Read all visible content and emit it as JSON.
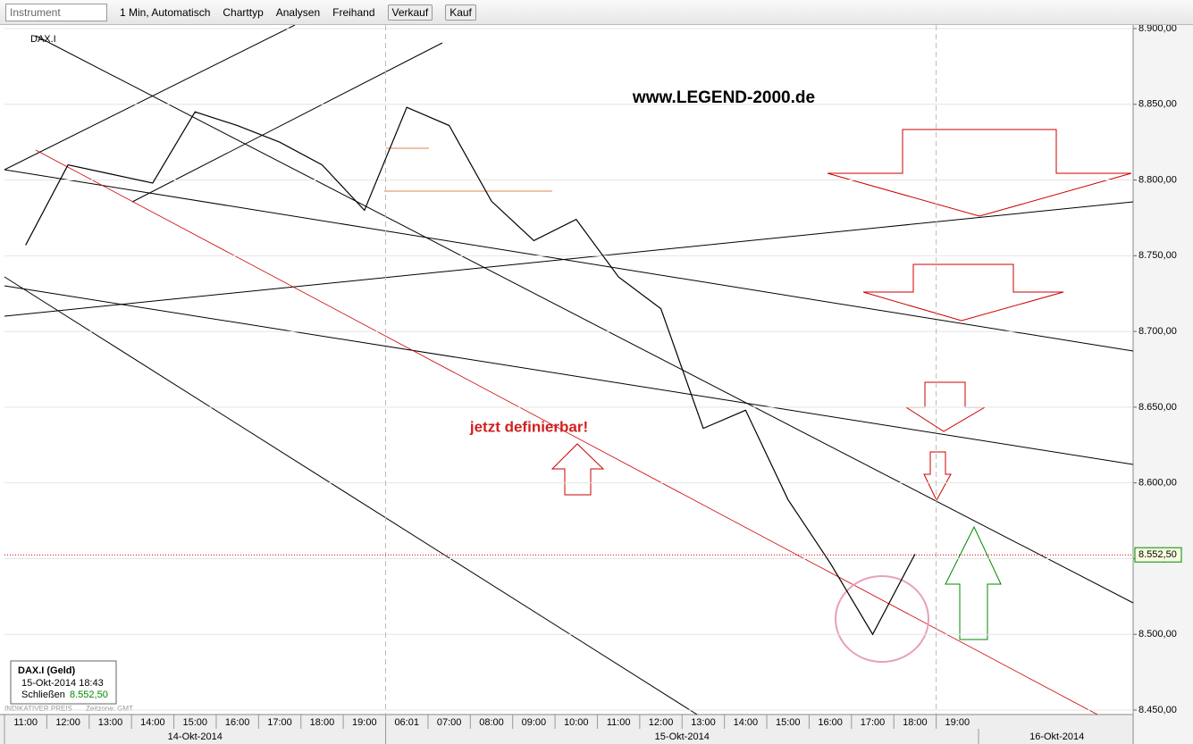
{
  "toolbar": {
    "instrument": "Instrument",
    "interval": "1 Min, Automatisch",
    "charttype": "Charttyp",
    "analysen": "Analysen",
    "freihand": "Freihand",
    "verkauf": "Verkauf",
    "kauf": "Kauf"
  },
  "chart_data": {
    "type": "line",
    "instrument": "DAX.I",
    "annotations": [
      "www.LEGEND-2000.de",
      "jetzt definierbar!"
    ],
    "categories": [
      "11:00",
      "12:00",
      "13:00",
      "14:00",
      "15:00",
      "16:00",
      "17:00",
      "18:00",
      "19:00",
      "06:01",
      "07:00",
      "08:00",
      "09:00",
      "10:00",
      "11:00",
      "12:00",
      "13:00",
      "14:00",
      "15:00",
      "16:00",
      "17:00",
      "18:00",
      "19:00"
    ],
    "dates": [
      "14-Okt-2014",
      "15-Okt-2014",
      "16-Okt-2014"
    ],
    "series": [
      {
        "name": "DAX.I (Geld)",
        "color": "#000000",
        "values": [
          8757,
          8810,
          8804,
          8798,
          8845,
          8836,
          8825,
          8810,
          8780,
          8848,
          8836,
          8786,
          8760,
          8774,
          8736,
          8715,
          8636,
          8648,
          8589,
          8547,
          8500,
          8553,
          null
        ]
      }
    ],
    "last_price": {
      "value": 8552.5,
      "label": "8.552,50"
    },
    "ylim": [
      8900,
      8450
    ],
    "yticks": [
      {
        "value": 8900,
        "label": "8.900,00"
      },
      {
        "value": 8850,
        "label": "8.850,00"
      },
      {
        "value": 8800,
        "label": "8.800,00"
      },
      {
        "value": 8750,
        "label": "8.750,00"
      },
      {
        "value": 8700,
        "label": "8.700,00"
      },
      {
        "value": 8650,
        "label": "8.650,00"
      },
      {
        "value": 8600,
        "label": "8.600,00"
      },
      {
        "value": 8550,
        "label": "8.550,00"
      },
      {
        "value": 8500,
        "label": "8.500,00"
      },
      {
        "value": 8450,
        "label": "8.450,00"
      }
    ],
    "grid": true,
    "info": {
      "title": "DAX.I (Geld)",
      "time": "15-Okt-2014 18:43",
      "close_label": "Schließen",
      "close_value": "8.552,50"
    },
    "footer": {
      "price_type": "INDIKATIVER PREIS",
      "timezone": "Zeitzone: GMT"
    }
  }
}
